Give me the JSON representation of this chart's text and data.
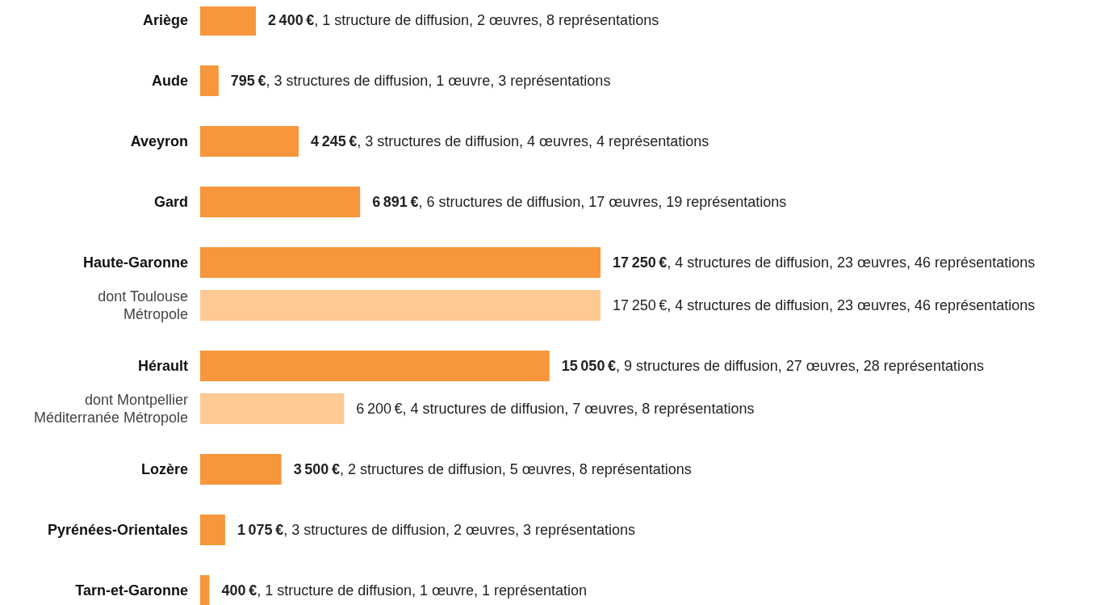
{
  "chart_data": {
    "type": "bar",
    "orientation": "horizontal",
    "categories": [
      "Ariège",
      "Aude",
      "Aveyron",
      "Gard",
      "Haute-Garonne",
      "dont Toulouse\nMétropole",
      "Hérault",
      "dont Montpellier\nMéditerranée Métropole",
      "Lozère",
      "Pyrénées-Orientales",
      "Tarn-et-Garonne"
    ],
    "values": [
      2400,
      795,
      4245,
      6891,
      17250,
      17250,
      15050,
      6200,
      3500,
      1075,
      400
    ],
    "colors": [
      "#f7963a",
      "#f7963a",
      "#f7963a",
      "#f7963a",
      "#f7963a",
      "#fec993",
      "#f7963a",
      "#fec993",
      "#f7963a",
      "#f7963a",
      "#f7963a"
    ],
    "value_labels": [
      "2 400 €, 1 structure de diffusion, 2 œuvres, 8 représentations",
      "795 €, 3 structures de diffusion, 1 œuvre, 3 représentations",
      "4 245 €, 3 structures de diffusion, 4 œuvres, 4 représentations",
      "6 891 €, 6 structures de diffusion, 17 œuvres, 19 représentations",
      "17 250 €, 4 structures de diffusion, 23 œuvres, 46 représentations",
      "17 250 €, 4 structures de diffusion, 23 œuvres, 46 représentations",
      "15 050 €, 9 structures de diffusion, 27 œuvres, 28 représentations",
      "6 200 €, 4 structures de diffusion, 7 œuvres, 8 représentations",
      "3 500 €, 2 structures de diffusion, 5 œuvres, 8 représentations",
      "1 075 €, 3 structures de diffusion, 2 œuvres, 3 représentations",
      "400 €, 1 structure de diffusion, 1 œuvre, 1 représentation"
    ]
  }
}
